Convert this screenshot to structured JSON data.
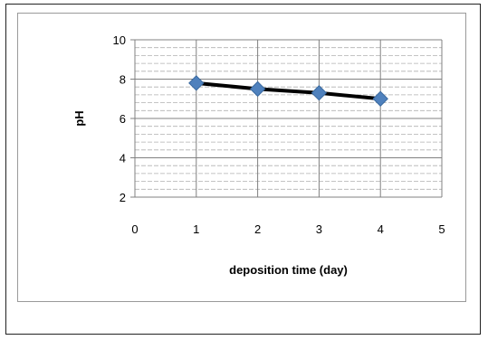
{
  "chart_data": {
    "type": "line",
    "title": "",
    "xlabel": "deposition time (day)",
    "ylabel": "pH",
    "xlim": [
      0,
      5
    ],
    "ylim": [
      2,
      10
    ],
    "x_ticks": [
      "0",
      "1",
      "2",
      "3",
      "4",
      "5"
    ],
    "y_ticks": [
      "2",
      "4",
      "6",
      "8",
      "10"
    ],
    "grid": true,
    "legend": "none",
    "series": [
      {
        "x": [
          1,
          2,
          3,
          4
        ],
        "y": [
          7.8,
          7.5,
          7.3,
          7.0
        ],
        "line_color": "#000000",
        "marker": "diamond",
        "marker_color": "#4f81bd"
      }
    ]
  }
}
